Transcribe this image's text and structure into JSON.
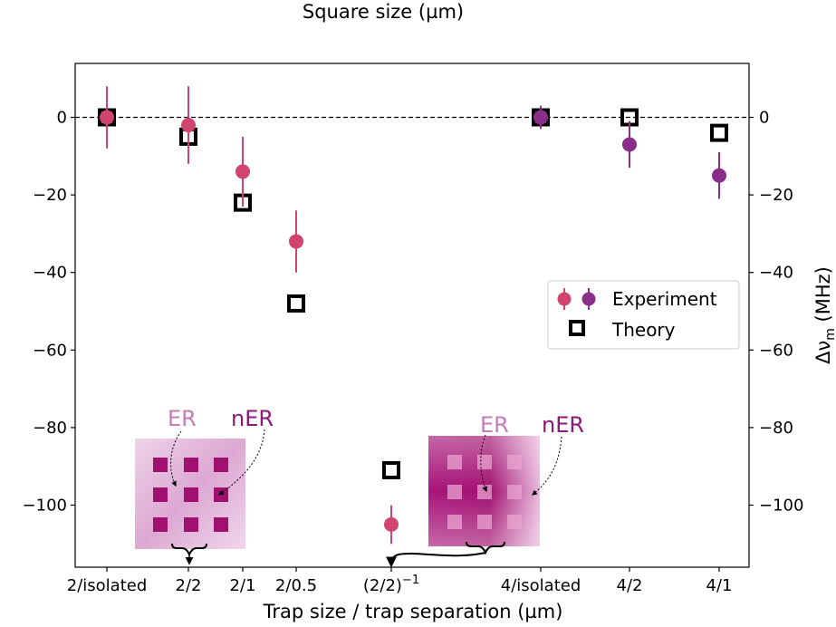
{
  "chart_data": {
    "type": "scatter",
    "title": "Square size (µm)",
    "xlabel": "Trap size / trap separation (µm)",
    "ylabel_right": "Δν",
    "ylabel_right_sub": "m",
    "ylabel_right_unit": " (MHz)",
    "categories": [
      "2/isolated",
      "2/2",
      "2/1",
      "2/0.5",
      "(2/2)",
      "4/isolated",
      "4/2",
      "4/1"
    ],
    "category_superscript": {
      "4": "−1"
    },
    "ylim": [
      -115,
      14
    ],
    "yticks": [
      0,
      -20,
      -40,
      -60,
      -80,
      -100
    ],
    "ytick_labels": [
      "0",
      "−20",
      "−40",
      "−60",
      "−80",
      "−100"
    ],
    "reference_line": 0,
    "series": [
      {
        "name": "Experiment",
        "color": "#d1446e",
        "points": [
          {
            "cat": 0,
            "y": 0,
            "err": 8
          },
          {
            "cat": 1,
            "y": -2,
            "err": 10
          },
          {
            "cat": 2,
            "y": -14,
            "err": 9
          },
          {
            "cat": 3,
            "y": -32,
            "err": 8
          },
          {
            "cat": 4,
            "y": -105,
            "err": 5
          }
        ]
      },
      {
        "name": "Experiment",
        "color": "#8b2e8a",
        "points": [
          {
            "cat": 5,
            "y": 0,
            "err": 3
          },
          {
            "cat": 6,
            "y": -7,
            "err": 6
          },
          {
            "cat": 7,
            "y": -15,
            "err": 6
          }
        ]
      },
      {
        "name": "Theory",
        "color": "#000000",
        "points": [
          {
            "cat": 0,
            "y": 0
          },
          {
            "cat": 1,
            "y": -5
          },
          {
            "cat": 2,
            "y": -22
          },
          {
            "cat": 3,
            "y": -48
          },
          {
            "cat": 4,
            "y": -91
          },
          {
            "cat": 5,
            "y": 0
          },
          {
            "cat": 6,
            "y": 0
          },
          {
            "cat": 7,
            "y": -4
          }
        ]
      }
    ],
    "legend": {
      "position": "center-right",
      "experiment_label": "Experiment",
      "theory_label": "Theory"
    },
    "insets": [
      {
        "label_er": "ER",
        "label_ner": "nER"
      },
      {
        "label_er": "ER",
        "label_ner": "nER"
      }
    ]
  }
}
